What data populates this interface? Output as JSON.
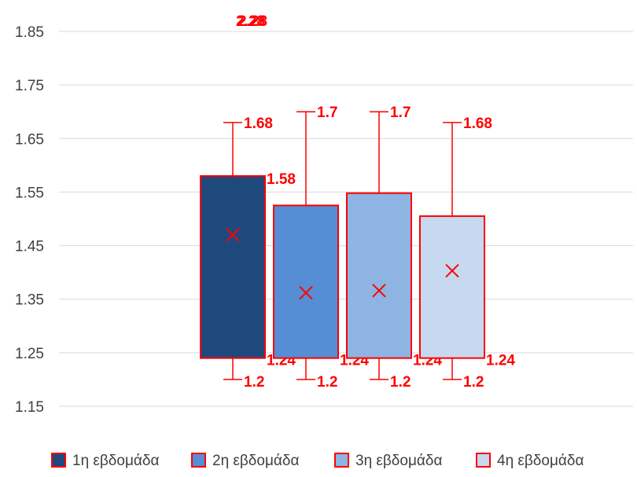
{
  "chart_data": {
    "type": "box",
    "ylim": [
      1.15,
      1.85
    ],
    "y_ticks": [
      "1.15",
      "1.25",
      "1.35",
      "1.45",
      "1.55",
      "1.65",
      "1.75",
      "1.85"
    ],
    "grid": true,
    "legend_position": "bottom",
    "outlier_labels": [
      "2.28",
      "2.28"
    ],
    "series": [
      {
        "name": "1η εβδομάδα",
        "color": "#1f497d",
        "min": 1.2,
        "q1": 1.24,
        "q3": 1.58,
        "max": 1.68,
        "mean": 1.47,
        "labels": {
          "min": "1.2",
          "q1": "1.24",
          "q3": "1.58",
          "max": "1.68"
        }
      },
      {
        "name": "2η εβδομάδα",
        "color": "#558ed5",
        "min": 1.2,
        "q1": 1.24,
        "q3": 1.525,
        "max": 1.7,
        "mean": 1.362,
        "labels": {
          "min": "1.2",
          "q1": "1.24",
          "max": "1.7"
        }
      },
      {
        "name": "3η εβδομάδα",
        "color": "#8eb4e3",
        "min": 1.2,
        "q1": 1.24,
        "q3": 1.548,
        "max": 1.7,
        "mean": 1.366,
        "labels": {
          "min": "1.2",
          "q1": "1.24",
          "max": "1.7"
        }
      },
      {
        "name": "4η εβδομάδα",
        "color": "#c6d9f1",
        "min": 1.2,
        "q1": 1.24,
        "q3": 1.505,
        "max": 1.68,
        "mean": 1.403,
        "labels": {
          "min": "1.2",
          "q1": "1.24",
          "max": "1.68"
        }
      }
    ]
  }
}
